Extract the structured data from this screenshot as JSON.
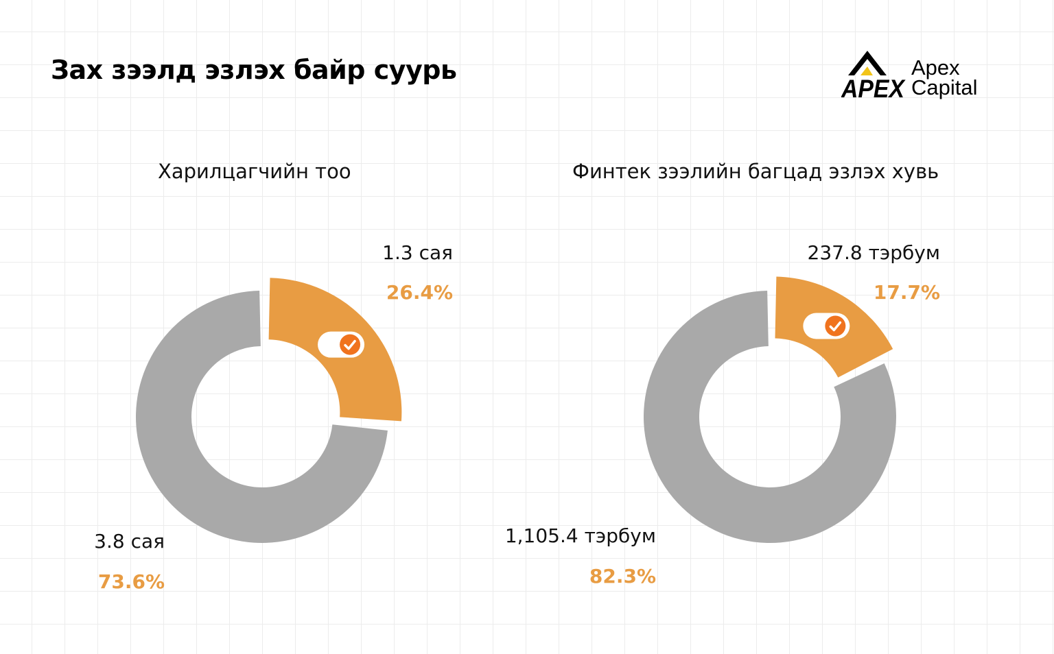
{
  "title": "Зах зээлд эзлэх байр суурь",
  "logo": {
    "mark_text": "APEX",
    "line1": "Apex",
    "line2": "Capital"
  },
  "colors": {
    "highlight": "#E89C43",
    "rest": "#A9A9A9",
    "pct_text": "#E89C43",
    "check_icon": "#F0731E"
  },
  "chart_data": [
    {
      "type": "pie",
      "title": "Харилцагчийн тоо",
      "slices": [
        {
          "value_label": "1.3 сая",
          "percent": 26.4,
          "percent_label": "26.4%",
          "color": "#E89C43",
          "highlighted": true
        },
        {
          "value_label": "3.8 сая",
          "percent": 73.6,
          "percent_label": "73.6%",
          "color": "#A9A9A9",
          "highlighted": false
        }
      ]
    },
    {
      "type": "pie",
      "title": "Финтек зээлийн багцад эзлэх хувь",
      "slices": [
        {
          "value_label": "237.8 тэрбум",
          "percent": 17.7,
          "percent_label": "17.7%",
          "color": "#E89C43",
          "highlighted": true
        },
        {
          "value_label": "1,105.4 тэрбум",
          "percent": 82.3,
          "percent_label": "82.3%",
          "color": "#A9A9A9",
          "highlighted": false
        }
      ]
    }
  ]
}
